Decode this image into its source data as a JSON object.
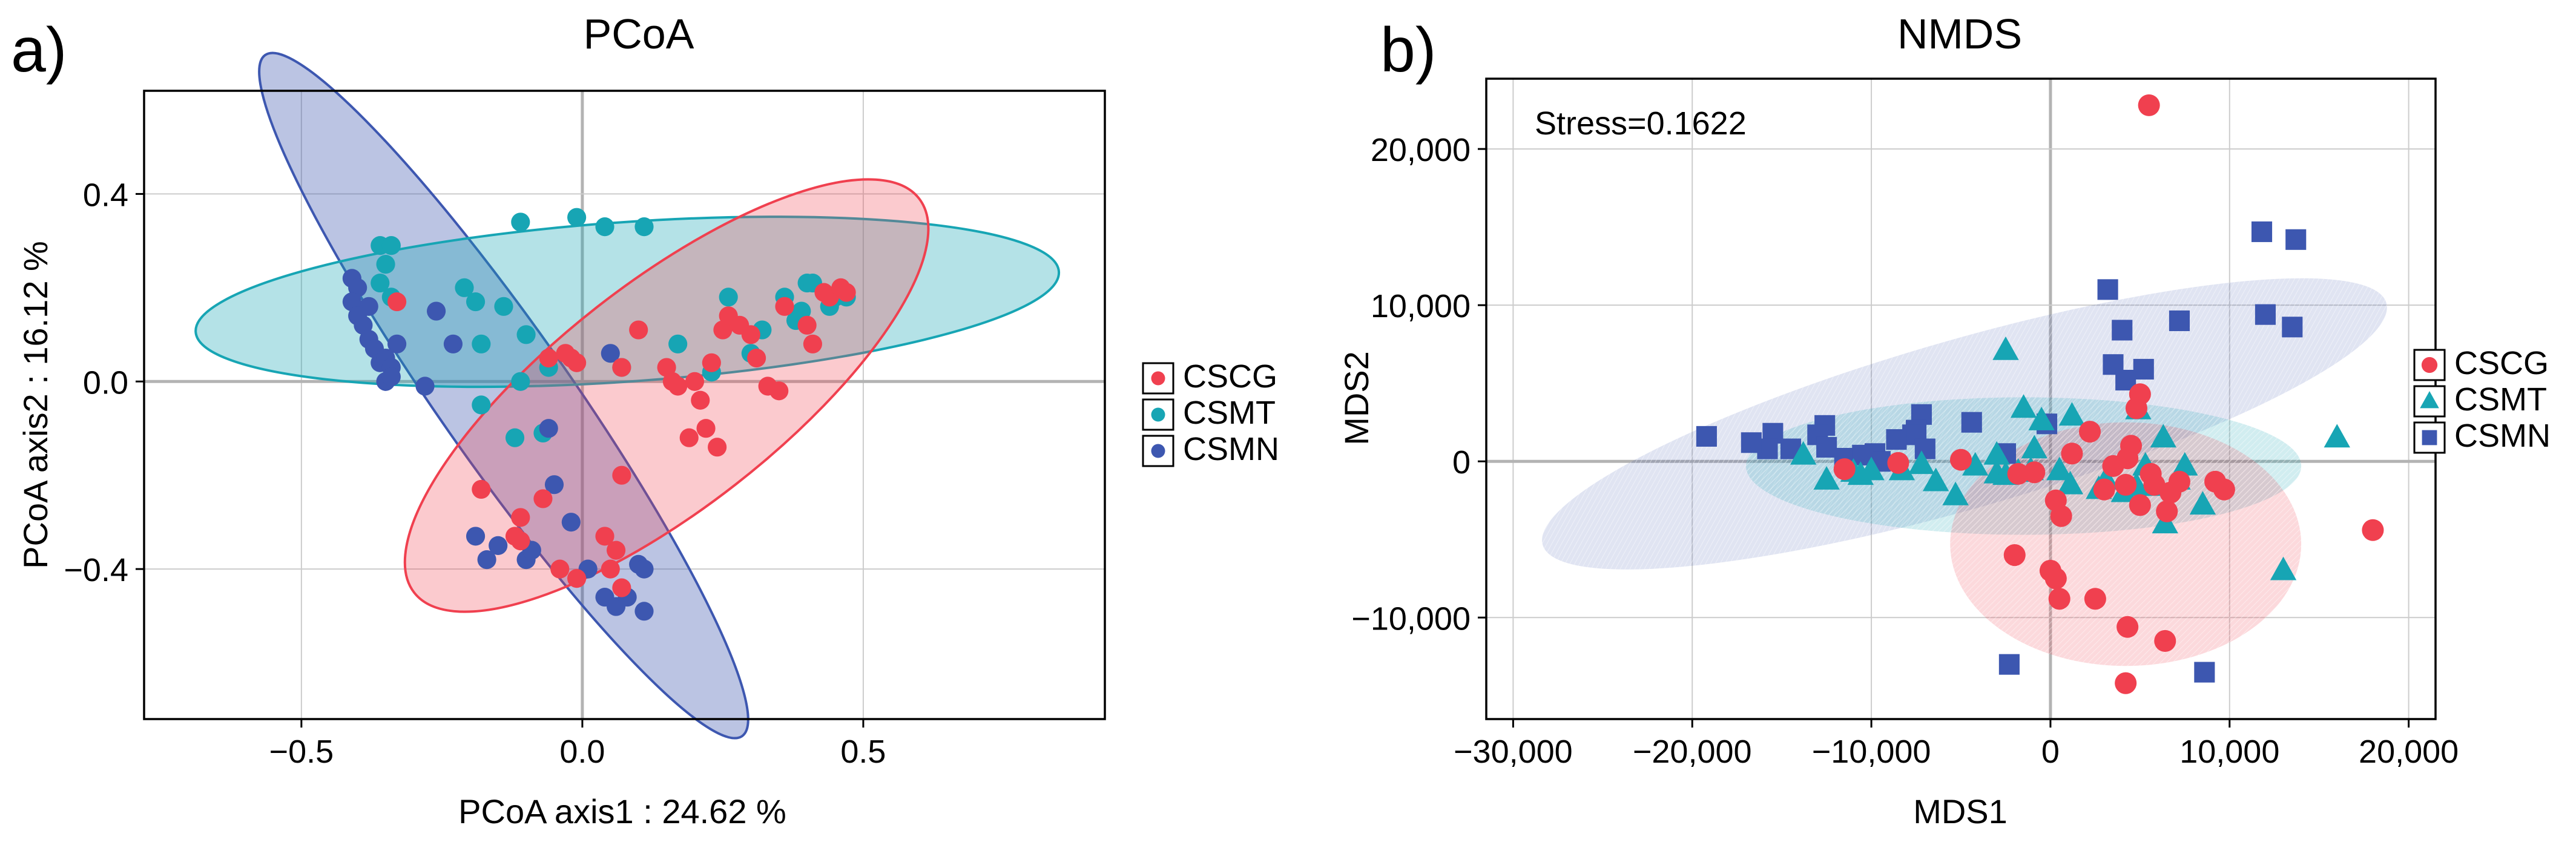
{
  "colors": {
    "CSCG": "#f0404f",
    "CSMT": "#17a5b4",
    "CSMN": "#3d57b0",
    "grid": "#cccccc",
    "zero": "#b3b3b3"
  },
  "chart_data": [
    {
      "panel_label": "a)",
      "type": "scatter",
      "title": "PCoA",
      "xlabel": "PCoA axis1 : 24.62 %",
      "ylabel": "PCoA axis2 : 16.12 %",
      "xlim": [
        -0.78,
        0.93
      ],
      "ylim": [
        -0.72,
        0.62
      ],
      "xticks": [
        -0.5,
        0.0,
        0.5
      ],
      "xtick_labels": [
        "−0.5",
        "0.0",
        "0.5"
      ],
      "yticks": [
        -0.4,
        0.0,
        0.4
      ],
      "ytick_labels": [
        "−0.4",
        "0.0",
        "0.4"
      ],
      "legend": [
        {
          "label": "CSCG",
          "group": "CSCG",
          "marker": "circle"
        },
        {
          "label": "CSMT",
          "group": "CSMT",
          "marker": "circle"
        },
        {
          "label": "CSMN",
          "group": "CSMN",
          "marker": "circle"
        }
      ],
      "ellipses": [
        {
          "group": "CSMN",
          "cx": -0.14,
          "cy": -0.03,
          "rx": 0.74,
          "ry": 0.14,
          "angle": -55,
          "opacity": 0.35
        },
        {
          "group": "CSMT",
          "cx": 0.08,
          "cy": 0.17,
          "rx": 0.77,
          "ry": 0.17,
          "angle": 4,
          "opacity": 0.32
        },
        {
          "group": "CSCG",
          "cx": 0.15,
          "cy": -0.03,
          "rx": 0.57,
          "ry": 0.24,
          "angle": 38,
          "opacity": 0.28
        }
      ],
      "series": [
        {
          "name": "CSCG",
          "marker": "circle",
          "points": [
            [
              -0.33,
              0.17
            ],
            [
              -0.18,
              -0.23
            ],
            [
              -0.11,
              -0.29
            ],
            [
              -0.12,
              -0.33
            ],
            [
              -0.11,
              -0.34
            ],
            [
              -0.07,
              -0.25
            ],
            [
              -0.04,
              -0.4
            ],
            [
              -0.01,
              -0.42
            ],
            [
              0.04,
              -0.33
            ],
            [
              0.05,
              -0.4
            ],
            [
              0.07,
              -0.44
            ],
            [
              0.06,
              -0.36
            ],
            [
              0.07,
              -0.2
            ],
            [
              -0.06,
              0.05
            ],
            [
              -0.03,
              0.06
            ],
            [
              -0.02,
              0.05
            ],
            [
              0.07,
              0.03
            ],
            [
              0.1,
              0.11
            ],
            [
              0.15,
              0.03
            ],
            [
              0.16,
              0.0
            ],
            [
              0.17,
              -0.01
            ],
            [
              0.19,
              -0.12
            ],
            [
              0.2,
              0.0
            ],
            [
              0.21,
              -0.04
            ],
            [
              0.22,
              -0.1
            ],
            [
              0.24,
              -0.14
            ],
            [
              0.23,
              0.04
            ],
            [
              0.25,
              0.11
            ],
            [
              0.26,
              0.14
            ],
            [
              0.28,
              0.12
            ],
            [
              0.3,
              0.1
            ],
            [
              0.31,
              0.05
            ],
            [
              0.33,
              -0.01
            ],
            [
              0.35,
              -0.02
            ],
            [
              0.36,
              0.16
            ],
            [
              0.4,
              0.12
            ],
            [
              0.41,
              0.08
            ],
            [
              0.43,
              0.19
            ],
            [
              0.44,
              0.18
            ],
            [
              0.46,
              0.2
            ],
            [
              0.47,
              0.19
            ],
            [
              -0.01,
              0.04
            ]
          ]
        },
        {
          "name": "CSMT",
          "marker": "circle",
          "points": [
            [
              -0.36,
              0.29
            ],
            [
              -0.34,
              0.29
            ],
            [
              -0.35,
              0.25
            ],
            [
              -0.36,
              0.21
            ],
            [
              -0.34,
              0.18
            ],
            [
              -0.21,
              0.2
            ],
            [
              -0.19,
              0.17
            ],
            [
              -0.18,
              0.08
            ],
            [
              -0.18,
              -0.05
            ],
            [
              -0.14,
              0.16
            ],
            [
              -0.12,
              -0.12
            ],
            [
              -0.11,
              0.0
            ],
            [
              -0.1,
              0.1
            ],
            [
              -0.11,
              0.34
            ],
            [
              -0.07,
              -0.11
            ],
            [
              -0.06,
              0.03
            ],
            [
              -0.01,
              0.35
            ],
            [
              0.04,
              0.33
            ],
            [
              0.07,
              0.03
            ],
            [
              0.11,
              0.33
            ],
            [
              0.17,
              0.08
            ],
            [
              0.23,
              0.02
            ],
            [
              0.26,
              0.18
            ],
            [
              0.3,
              0.06
            ],
            [
              0.32,
              0.11
            ],
            [
              0.36,
              0.18
            ],
            [
              0.38,
              0.13
            ],
            [
              0.39,
              0.15
            ],
            [
              0.4,
              0.21
            ],
            [
              0.41,
              0.21
            ],
            [
              0.44,
              0.16
            ],
            [
              0.45,
              0.18
            ],
            [
              0.47,
              0.18
            ]
          ]
        },
        {
          "name": "CSMN",
          "marker": "circle",
          "points": [
            [
              -0.41,
              0.22
            ],
            [
              -0.4,
              0.2
            ],
            [
              -0.41,
              0.17
            ],
            [
              -0.38,
              0.16
            ],
            [
              -0.4,
              0.14
            ],
            [
              -0.39,
              0.12
            ],
            [
              -0.38,
              0.09
            ],
            [
              -0.37,
              0.07
            ],
            [
              -0.36,
              0.04
            ],
            [
              -0.35,
              0.05
            ],
            [
              -0.34,
              0.03
            ],
            [
              -0.33,
              0.08
            ],
            [
              -0.35,
              0.0
            ],
            [
              -0.34,
              0.01
            ],
            [
              -0.28,
              -0.01
            ],
            [
              -0.26,
              0.15
            ],
            [
              -0.23,
              0.08
            ],
            [
              -0.19,
              -0.33
            ],
            [
              -0.17,
              -0.38
            ],
            [
              -0.15,
              -0.35
            ],
            [
              -0.1,
              -0.38
            ],
            [
              -0.09,
              -0.36
            ],
            [
              -0.06,
              -0.1
            ],
            [
              -0.05,
              -0.22
            ],
            [
              -0.02,
              -0.3
            ],
            [
              0.01,
              -0.4
            ],
            [
              0.05,
              0.06
            ],
            [
              0.04,
              -0.46
            ],
            [
              0.06,
              -0.48
            ],
            [
              0.08,
              -0.46
            ],
            [
              0.1,
              -0.39
            ],
            [
              0.11,
              -0.4
            ],
            [
              0.11,
              -0.49
            ]
          ]
        }
      ]
    },
    {
      "panel_label": "b)",
      "type": "scatter",
      "title": "NMDS",
      "xlabel": "MDS1",
      "ylabel": "MDS2",
      "annotation": "Stress=0.1622",
      "xlim": [
        -31500,
        21500
      ],
      "ylim": [
        -16500,
        24500
      ],
      "xticks": [
        -30000,
        -20000,
        -10000,
        0,
        10000,
        20000
      ],
      "xtick_labels": [
        "−30,000",
        "−20,000",
        "−10,000",
        "0",
        "10,000",
        "20,000"
      ],
      "yticks": [
        -10000,
        0,
        10000,
        20000
      ],
      "ytick_labels": [
        "−10,000",
        "0",
        "10,000",
        "20,000"
      ],
      "legend": [
        {
          "label": "CSCG",
          "group": "CSCG",
          "marker": "circle"
        },
        {
          "label": "CSMT",
          "group": "CSMT",
          "marker": "triangle"
        },
        {
          "label": "CSMN",
          "group": "CSMN",
          "marker": "square"
        }
      ],
      "ellipses": [
        {
          "group": "CSMN",
          "cx": -4800,
          "cy": 2400,
          "rx": 24500,
          "ry": 5400,
          "angle": 16,
          "opacity": 0.16
        },
        {
          "group": "CSMT",
          "cx": -1500,
          "cy": -300,
          "rx": 15500,
          "ry": 4400,
          "angle": 0,
          "opacity": 0.2
        },
        {
          "group": "CSCG",
          "cx": 4200,
          "cy": -5300,
          "rx": 9800,
          "ry": 7800,
          "angle": 0,
          "opacity": 0.2
        }
      ],
      "series": [
        {
          "name": "CSCG",
          "marker": "circle",
          "points": [
            [
              5500,
              22800
            ],
            [
              5000,
              4300
            ],
            [
              4800,
              3400
            ],
            [
              2200,
              1900
            ],
            [
              4500,
              1000
            ],
            [
              3500,
              -300
            ],
            [
              4200,
              -1500
            ],
            [
              5000,
              -2800
            ],
            [
              6500,
              -3200
            ],
            [
              600,
              -3500
            ],
            [
              300,
              -2500
            ],
            [
              -2000,
              -6000
            ],
            [
              0,
              -7000
            ],
            [
              300,
              -7500
            ],
            [
              500,
              -8800
            ],
            [
              2500,
              -8800
            ],
            [
              4300,
              -10600
            ],
            [
              6400,
              -11500
            ],
            [
              4200,
              -14200
            ],
            [
              18000,
              -4400
            ],
            [
              9200,
              -1300
            ],
            [
              9700,
              -1800
            ],
            [
              6700,
              -2000
            ],
            [
              5600,
              -800
            ],
            [
              7200,
              -1300
            ],
            [
              5800,
              -1500
            ],
            [
              1200,
              500
            ],
            [
              -900,
              -700
            ],
            [
              -1800,
              -800
            ],
            [
              -8500,
              -100
            ],
            [
              -5000,
              100
            ],
            [
              -11500,
              -500
            ],
            [
              3000,
              -1800
            ],
            [
              4300,
              200
            ]
          ]
        },
        {
          "name": "CSMT",
          "marker": "triangle",
          "points": [
            [
              -2500,
              7100
            ],
            [
              -1500,
              3400
            ],
            [
              -900,
              800
            ],
            [
              -3000,
              400
            ],
            [
              -4200,
              -300
            ],
            [
              -6400,
              -1300
            ],
            [
              -5300,
              -2200
            ],
            [
              -11000,
              -700
            ],
            [
              -10600,
              -900
            ],
            [
              -10000,
              -600
            ],
            [
              -12500,
              -1200
            ],
            [
              -13800,
              400
            ],
            [
              -8300,
              -600
            ],
            [
              -7200,
              -200
            ],
            [
              -3000,
              -800
            ],
            [
              -2500,
              -900
            ],
            [
              -1800,
              -700
            ],
            [
              -1100,
              -600
            ],
            [
              500,
              -600
            ],
            [
              1100,
              -1500
            ],
            [
              2700,
              -1800
            ],
            [
              3100,
              -1200
            ],
            [
              4100,
              -2000
            ],
            [
              4800,
              -1600
            ],
            [
              5300,
              -300
            ],
            [
              6000,
              -1600
            ],
            [
              6400,
              -4000
            ],
            [
              7100,
              -1200
            ],
            [
              7500,
              -300
            ],
            [
              8500,
              -2800
            ],
            [
              6300,
              1500
            ],
            [
              4900,
              3300
            ],
            [
              1200,
              2900
            ],
            [
              -500,
              2600
            ],
            [
              16000,
              1500
            ],
            [
              13000,
              -7000
            ]
          ]
        },
        {
          "name": "CSMN",
          "marker": "square",
          "points": [
            [
              11800,
              14700
            ],
            [
              13700,
              14200
            ],
            [
              12000,
              9400
            ],
            [
              13500,
              8600
            ],
            [
              3200,
              11000
            ],
            [
              7200,
              9000
            ],
            [
              4000,
              8400
            ],
            [
              3500,
              6200
            ],
            [
              5200,
              5900
            ],
            [
              4200,
              5200
            ],
            [
              -7200,
              3000
            ],
            [
              -4400,
              2500
            ],
            [
              -7500,
              2000
            ],
            [
              -7700,
              1700
            ],
            [
              -8600,
              1400
            ],
            [
              -12600,
              2300
            ],
            [
              -13000,
              1700
            ],
            [
              -12500,
              900
            ],
            [
              -14500,
              800
            ],
            [
              -15500,
              1800
            ],
            [
              -15800,
              800
            ],
            [
              -16700,
              1200
            ],
            [
              -19200,
              1600
            ],
            [
              -11500,
              200
            ],
            [
              -9800,
              500
            ],
            [
              -7000,
              800
            ],
            [
              -2500,
              500
            ],
            [
              -200,
              2400
            ],
            [
              -2300,
              -13000
            ],
            [
              8600,
              -13500
            ],
            [
              -9500,
              0
            ],
            [
              -10500,
              400
            ]
          ]
        }
      ]
    }
  ]
}
